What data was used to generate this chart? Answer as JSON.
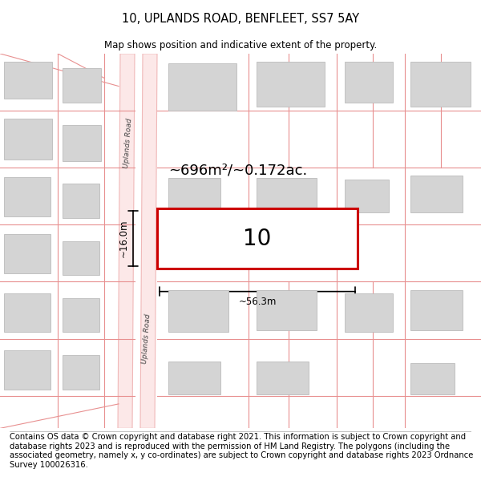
{
  "title": "10, UPLANDS ROAD, BENFLEET, SS7 5AY",
  "subtitle": "Map shows position and indicative extent of the property.",
  "footer": "Contains OS data © Crown copyright and database right 2021. This information is subject to Crown copyright and database rights 2023 and is reproduced with the permission of HM Land Registry. The polygons (including the associated geometry, namely x, y co-ordinates) are subject to Crown copyright and database rights 2023 Ordnance Survey 100026316.",
  "bg_color": "#ffffff",
  "road_color": "#f0b8b8",
  "road_fill": "#fce8e8",
  "building_color": "#d4d4d4",
  "building_edge": "#bbbbbb",
  "parcel_color": "#e89090",
  "highlight_color": "#cc0000",
  "highlight_fill": "#ffffff",
  "road_label": "Uplands Road",
  "area_label": "~696m²/~0.172ac.",
  "property_label": "10",
  "width_label": "~56.3m",
  "height_label": "~16.0m",
  "title_fontsize": 10.5,
  "subtitle_fontsize": 8.5,
  "footer_fontsize": 7.2
}
